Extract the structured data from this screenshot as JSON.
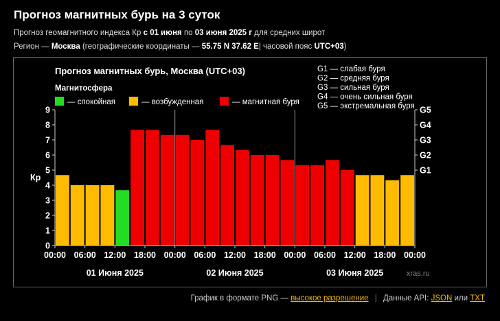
{
  "header": {
    "title": "Прогноз магнитных бурь на 3 суток",
    "line1_pre": "Прогноз геомагнитного индекса Кр",
    "line1_from_word": "с",
    "line1_from": "01 июня",
    "line1_to_word": "по",
    "line1_to": "03 июня 2025 г",
    "line1_post": "для средних широт",
    "line2_region_label": "Регион —",
    "line2_region": "Москва",
    "line2_coords_pre": "(географические координаты —",
    "line2_coords": "55.75 N 37.62 E",
    "line2_tz_pre": "| часовой пояс",
    "line2_tz": "UTC+03",
    "line2_tz_post": ")"
  },
  "footer": {
    "png_label": "График в формате PNG —",
    "png_link": "высокое разрешение",
    "api_label": "Данные API:",
    "json_link": "JSON",
    "or_word": "или",
    "txt_link": "TXT"
  },
  "chart_data": {
    "type": "bar",
    "title": "Прогноз магнитных бурь, Москва (UTC+03)",
    "ylabel": "Кр",
    "ylim": [
      0,
      9
    ],
    "yticks": [
      0,
      1,
      2,
      3,
      4,
      5,
      6,
      7,
      8,
      9
    ],
    "g_scale": [
      {
        "label": "G1",
        "kp": 5
      },
      {
        "label": "G2",
        "kp": 6
      },
      {
        "label": "G3",
        "kp": 7
      },
      {
        "label": "G4",
        "kp": 8
      },
      {
        "label": "G5",
        "kp": 9
      }
    ],
    "g_legend": [
      "G1 — слабая буря",
      "G2 — средняя буря",
      "G3 — сильная буря",
      "G4 — очень сильная буря",
      "G5 — экстремальная буря"
    ],
    "legend_title": "Магнитосфера",
    "legend": [
      {
        "label": "— спокойная",
        "color": "#22dd22"
      },
      {
        "label": "— возбужденная",
        "color": "#ffbb00"
      },
      {
        "label": "— магнитная буря",
        "color": "#ee0000"
      }
    ],
    "colors": {
      "calm": "#22dd22",
      "active": "#ffbb00",
      "storm": "#ee0000"
    },
    "x_tick_labels": [
      "00:00",
      "06:00",
      "12:00",
      "18:00",
      "00:00",
      "06:00",
      "12:00",
      "18:00",
      "00:00",
      "06:00",
      "12:00",
      "18:00",
      "00:00"
    ],
    "days": [
      "01 Июня 2025",
      "02 Июня 2025",
      "03 Июня 2025"
    ],
    "interval_hours": 3,
    "values": [
      4.67,
      4.0,
      4.0,
      4.0,
      3.67,
      7.67,
      7.67,
      7.33,
      7.33,
      7.0,
      7.67,
      6.67,
      6.33,
      6.0,
      6.0,
      5.67,
      5.33,
      5.33,
      5.67,
      5.0,
      4.67,
      4.67,
      4.33,
      4.67
    ],
    "watermark": "xras.ru"
  }
}
